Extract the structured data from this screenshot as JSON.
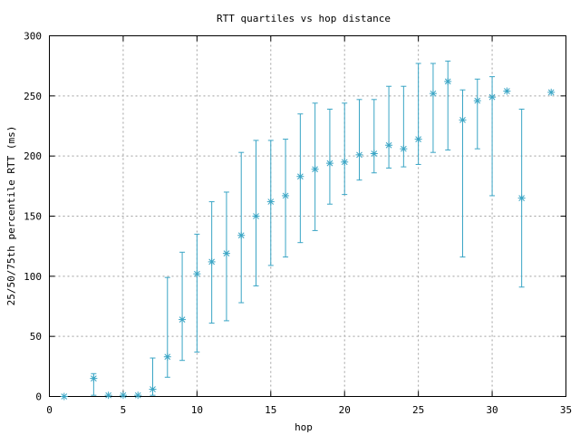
{
  "chart_data": {
    "type": "scatter",
    "title": "RTT quartiles vs hop distance",
    "xlabel": "hop",
    "ylabel": "25/50/75th percentile RTT (ms)",
    "xlim": [
      0,
      35
    ],
    "ylim": [
      0,
      300
    ],
    "xticks": [
      "0",
      "5",
      "10",
      "15",
      "20",
      "25",
      "30",
      "35"
    ],
    "yticks": [
      "0",
      "50",
      "100",
      "150",
      "200",
      "250",
      "300"
    ],
    "grid": true,
    "legend": "none",
    "series": [
      {
        "color": "#3aa5c5",
        "marker": "asterisk",
        "errorbars": true,
        "points": [
          {
            "x": 1,
            "low": 0,
            "median": 0,
            "high": 0
          },
          {
            "x": 3,
            "low": 1,
            "median": 15,
            "high": 19
          },
          {
            "x": 4,
            "low": 1,
            "median": 1,
            "high": 1
          },
          {
            "x": 5,
            "low": 1,
            "median": 1,
            "high": 1
          },
          {
            "x": 6,
            "low": 1,
            "median": 1,
            "high": 1
          },
          {
            "x": 7,
            "low": 1,
            "median": 6,
            "high": 32
          },
          {
            "x": 8,
            "low": 16,
            "median": 33,
            "high": 99
          },
          {
            "x": 9,
            "low": 30,
            "median": 64,
            "high": 120
          },
          {
            "x": 10,
            "low": 37,
            "median": 102,
            "high": 135
          },
          {
            "x": 11,
            "low": 61,
            "median": 112,
            "high": 162
          },
          {
            "x": 12,
            "low": 63,
            "median": 119,
            "high": 170
          },
          {
            "x": 13,
            "low": 78,
            "median": 134,
            "high": 203
          },
          {
            "x": 14,
            "low": 92,
            "median": 150,
            "high": 213
          },
          {
            "x": 15,
            "low": 109,
            "median": 162,
            "high": 213
          },
          {
            "x": 16,
            "low": 116,
            "median": 167,
            "high": 214
          },
          {
            "x": 17,
            "low": 128,
            "median": 183,
            "high": 235
          },
          {
            "x": 18,
            "low": 138,
            "median": 189,
            "high": 244
          },
          {
            "x": 19,
            "low": 160,
            "median": 194,
            "high": 239
          },
          {
            "x": 20,
            "low": 168,
            "median": 195,
            "high": 244
          },
          {
            "x": 21,
            "low": 180,
            "median": 201,
            "high": 247
          },
          {
            "x": 22,
            "low": 186,
            "median": 202,
            "high": 247
          },
          {
            "x": 23,
            "low": 190,
            "median": 209,
            "high": 258
          },
          {
            "x": 24,
            "low": 191,
            "median": 206,
            "high": 258
          },
          {
            "x": 25,
            "low": 193,
            "median": 214,
            "high": 277
          },
          {
            "x": 26,
            "low": 203,
            "median": 252,
            "high": 277
          },
          {
            "x": 27,
            "low": 205,
            "median": 262,
            "high": 279
          },
          {
            "x": 28,
            "low": 116,
            "median": 230,
            "high": 255
          },
          {
            "x": 29,
            "low": 206,
            "median": 246,
            "high": 264
          },
          {
            "x": 30,
            "low": 167,
            "median": 249,
            "high": 266
          },
          {
            "x": 31,
            "low": 254,
            "median": 254,
            "high": 254
          },
          {
            "x": 32,
            "low": 91,
            "median": 165,
            "high": 239
          },
          {
            "x": 34,
            "low": 253,
            "median": 253,
            "high": 253
          }
        ]
      }
    ]
  }
}
